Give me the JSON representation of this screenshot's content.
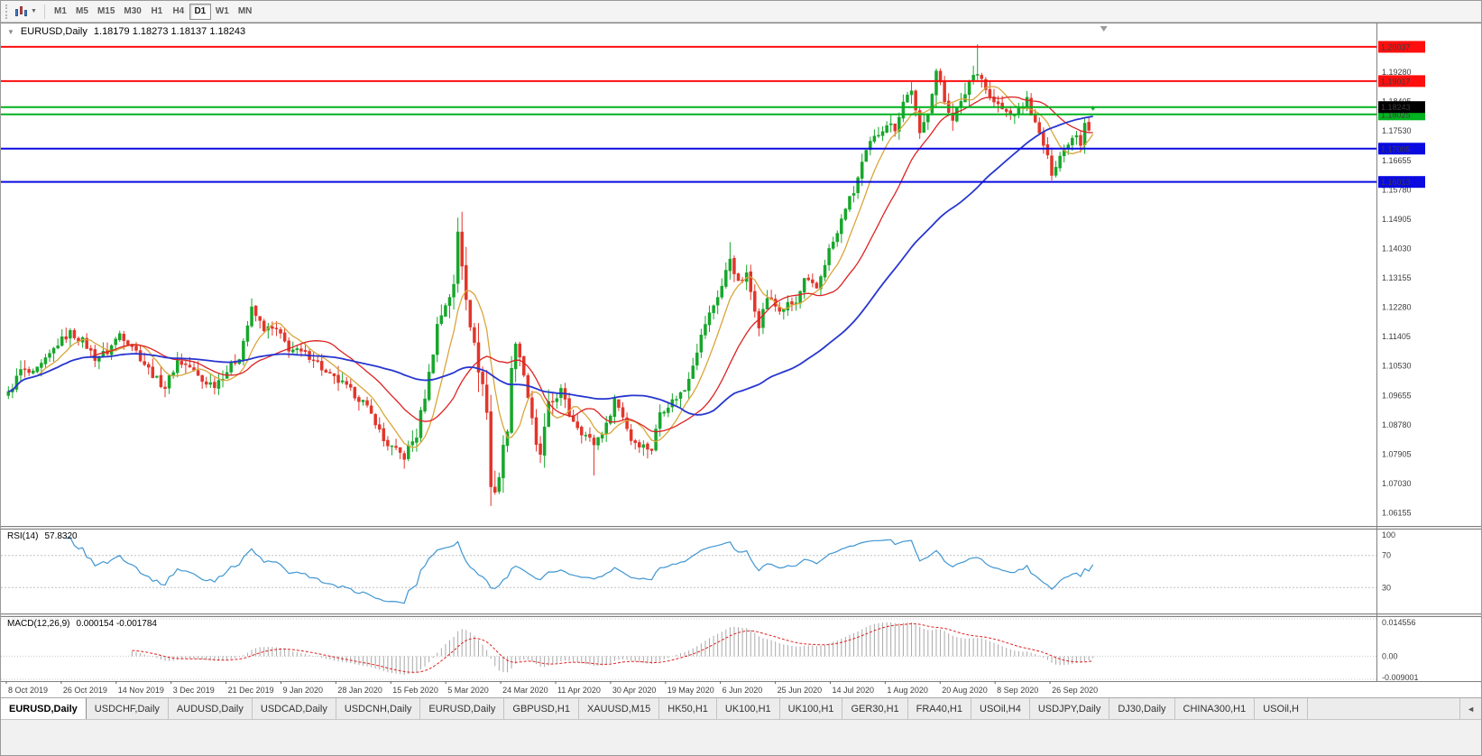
{
  "toolbar": {
    "timeframes": [
      "M1",
      "M5",
      "M15",
      "M30",
      "H1",
      "H4",
      "D1",
      "W1",
      "MN"
    ],
    "active_timeframe": "D1"
  },
  "chart": {
    "title_symbol": "EURUSD,Daily",
    "ohlc": "1.18179 1.18273 1.18137 1.18243",
    "collapse_icon": "▼"
  },
  "rsi_header": {
    "name": "RSI(14)",
    "value": "57.8320"
  },
  "macd_header": {
    "name": "MACD(12,26,9)",
    "values": "0.000154 -0.001784"
  },
  "tabs": {
    "items": [
      {
        "label": "EURUSD,Daily",
        "active": true
      },
      {
        "label": "USDCHF,Daily",
        "active": false
      },
      {
        "label": "AUDUSD,Daily",
        "active": false
      },
      {
        "label": "USDCAD,Daily",
        "active": false
      },
      {
        "label": "USDCNH,Daily",
        "active": false
      },
      {
        "label": "EURUSD,Daily",
        "active": false
      },
      {
        "label": "GBPUSD,H1",
        "active": false
      },
      {
        "label": "XAUUSD,M15",
        "active": false
      },
      {
        "label": "HK50,H1",
        "active": false
      },
      {
        "label": "UK100,H1",
        "active": false
      },
      {
        "label": "UK100,H1",
        "active": false
      },
      {
        "label": "GER30,H1",
        "active": false
      },
      {
        "label": "FRA40,H1",
        "active": false
      },
      {
        "label": "USOil,H4",
        "active": false
      },
      {
        "label": "USDJPY,Daily",
        "active": false
      },
      {
        "label": "DJ30,Daily",
        "active": false
      },
      {
        "label": "CHINA300,H1",
        "active": false
      },
      {
        "label": "USOil,H",
        "active": false
      }
    ],
    "overflow_indicator": "◄"
  },
  "chart_data": {
    "type": "candlestick",
    "symbol": "EURUSD",
    "timeframe": "Daily",
    "ohlc_display": {
      "open": 1.18179,
      "high": 1.18273,
      "low": 1.18137,
      "close": 1.18243
    },
    "total_bars": 264,
    "label_step_bars": 13.32,
    "x_labels": [
      "8 Oct 2019",
      "26 Oct 2019",
      "14 Nov 2019",
      "3 Dec 2019",
      "21 Dec 2019",
      "9 Jan 2020",
      "28 Jan 2020",
      "15 Feb 2020",
      "5 Mar 2020",
      "24 Mar 2020",
      "11 Apr 2020",
      "30 Apr 2020",
      "19 May 2020",
      "6 Jun 2020",
      "25 Jun 2020",
      "14 Jul 2020",
      "1 Aug 2020",
      "20 Aug 2020",
      "8 Sep 2020",
      "26 Sep 2020"
    ],
    "y_range": [
      1.0582,
      1.2068
    ],
    "y_ticks": [
      "1.19280",
      "1.18405",
      "1.17530",
      "1.16655",
      "1.15780",
      "1.14905",
      "1.14030",
      "1.13155",
      "1.12280",
      "1.11405",
      "1.10530",
      "1.09655",
      "1.08780",
      "1.07905",
      "1.07030",
      "1.06155"
    ],
    "h_lines": [
      {
        "price": 1.20037,
        "label": "1.20037",
        "color": "#ff0e0e",
        "show_label": true
      },
      {
        "price": 1.19017,
        "label": "1.19017",
        "color": "#ff0e0e",
        "show_label": true
      },
      {
        "price": 1.18243,
        "label": "1.18243",
        "color": "#00b21e",
        "show_label": false
      },
      {
        "price": 1.18025,
        "label": "1.18025",
        "color": "#00b21e",
        "show_label": true
      },
      {
        "price": 1.17005,
        "label": "1.17005",
        "color": "#0a0ae0",
        "show_label": true
      },
      {
        "price": 1.16013,
        "label": "1.16013",
        "color": "#0a0ae0",
        "show_label": true
      }
    ],
    "current_price": {
      "value": 1.18243,
      "label": "1.18243",
      "box_color": "#000000",
      "text_color": "#ffffff"
    },
    "close_waypoints": [
      [
        0,
        1.097
      ],
      [
        3,
        1.104
      ],
      [
        6,
        1.1028
      ],
      [
        9,
        1.1068
      ],
      [
        12,
        1.112
      ],
      [
        15,
        1.1152
      ],
      [
        18,
        1.1128
      ],
      [
        21,
        1.1078
      ],
      [
        24,
        1.1095
      ],
      [
        27,
        1.115
      ],
      [
        30,
        1.1115
      ],
      [
        33,
        1.106
      ],
      [
        36,
        1.1012
      ],
      [
        38,
        1.099
      ],
      [
        41,
        1.1068
      ],
      [
        44,
        1.105
      ],
      [
        47,
        1.1008
      ],
      [
        50,
        1.0998
      ],
      [
        53,
        1.1038
      ],
      [
        56,
        1.1082
      ],
      [
        59,
        1.1221
      ],
      [
        62,
        1.1165
      ],
      [
        65,
        1.116
      ],
      [
        68,
        1.1105
      ],
      [
        71,
        1.1092
      ],
      [
        74,
        1.1078
      ],
      [
        77,
        1.103
      ],
      [
        81,
        1.1
      ],
      [
        84,
        1.0968
      ],
      [
        86,
        1.0946
      ],
      [
        89,
        1.0888
      ],
      [
        91,
        1.083
      ],
      [
        94,
        1.08
      ],
      [
        96,
        1.0785
      ],
      [
        99,
        1.0848
      ],
      [
        102,
        1.1027
      ],
      [
        104,
        1.1174
      ],
      [
        106,
        1.1239
      ],
      [
        108,
        1.1288
      ],
      [
        109,
        1.145
      ],
      [
        111,
        1.1271
      ],
      [
        113,
        1.1105
      ],
      [
        115,
        1.0998
      ],
      [
        116,
        1.0915
      ],
      [
        117,
        1.0692
      ],
      [
        118,
        1.0688
      ],
      [
        119,
        1.0727
      ],
      [
        121,
        1.088
      ],
      [
        122,
        1.103
      ],
      [
        123,
        1.114
      ],
      [
        125,
        1.1031
      ],
      [
        126,
        1.0963
      ],
      [
        128,
        1.0808
      ],
      [
        129,
        1.0791
      ],
      [
        131,
        1.093
      ],
      [
        134,
        1.098
      ],
      [
        136,
        1.091
      ],
      [
        139,
        1.0858
      ],
      [
        142,
        1.0822
      ],
      [
        145,
        1.0875
      ],
      [
        147,
        1.0955
      ],
      [
        149,
        1.0905
      ],
      [
        151,
        1.0834
      ],
      [
        154,
        1.0815
      ],
      [
        156,
        1.0805
      ],
      [
        158,
        1.0916
      ],
      [
        161,
        1.0948
      ],
      [
        164,
        1.0983
      ],
      [
        167,
        1.1101
      ],
      [
        169,
        1.118
      ],
      [
        171,
        1.1234
      ],
      [
        173,
        1.1291
      ],
      [
        175,
        1.1375
      ],
      [
        177,
        1.1298
      ],
      [
        179,
        1.1323
      ],
      [
        182,
        1.1177
      ],
      [
        184,
        1.1258
      ],
      [
        187,
        1.1218
      ],
      [
        189,
        1.1234
      ],
      [
        191,
        1.1239
      ],
      [
        193,
        1.1308
      ],
      [
        196,
        1.1284
      ],
      [
        199,
        1.1398
      ],
      [
        201,
        1.1446
      ],
      [
        203,
        1.1527
      ],
      [
        205,
        1.1571
      ],
      [
        207,
        1.1656
      ],
      [
        209,
        1.1716
      ],
      [
        211,
        1.1746
      ],
      [
        213,
        1.1776
      ],
      [
        215,
        1.1762
      ],
      [
        217,
        1.184
      ],
      [
        219,
        1.1878
      ],
      [
        221,
        1.1739
      ],
      [
        223,
        1.1813
      ],
      [
        225,
        1.1932
      ],
      [
        227,
        1.1842
      ],
      [
        229,
        1.1796
      ],
      [
        231,
        1.1831
      ],
      [
        233,
        1.1903
      ],
      [
        235,
        1.1936
      ],
      [
        236,
        1.1911
      ],
      [
        238,
        1.1851
      ],
      [
        241,
        1.1817
      ],
      [
        243,
        1.1801
      ],
      [
        245,
        1.1814
      ],
      [
        247,
        1.1847
      ],
      [
        249,
        1.1772
      ],
      [
        251,
        1.1712
      ],
      [
        253,
        1.163
      ],
      [
        255,
        1.168
      ],
      [
        257,
        1.1721
      ],
      [
        259,
        1.1747
      ],
      [
        260,
        1.1716
      ],
      [
        261,
        1.1784
      ],
      [
        262,
        1.176
      ],
      [
        263,
        1.18243
      ]
    ],
    "vol_zones": [
      {
        "from": 96,
        "to": 108,
        "mult": 1.5
      },
      {
        "from": 109,
        "to": 125,
        "mult": 2.2
      },
      {
        "from": 126,
        "to": 132,
        "mult": 1.6
      },
      {
        "from": 225,
        "to": 237,
        "mult": 1.4
      }
    ],
    "spike_highs": [
      {
        "bar": 59,
        "price": 1.1239
      },
      {
        "bar": 109,
        "price": 1.1495
      },
      {
        "bar": 175,
        "price": 1.1422
      },
      {
        "bar": 235,
        "price": 1.2011
      }
    ],
    "spike_lows": [
      {
        "bar": 96,
        "price": 1.0778
      },
      {
        "bar": 117,
        "price": 1.0636
      },
      {
        "bar": 142,
        "price": 1.0727
      },
      {
        "bar": 253,
        "price": 1.1612
      }
    ],
    "moving_averages": [
      {
        "period": 8,
        "color": "#d9a53a",
        "width": 1.3
      },
      {
        "period": 21,
        "color": "#dd2222",
        "width": 1.3
      },
      {
        "period": 55,
        "color": "#2736cf",
        "width": 1.8
      }
    ],
    "rsi": {
      "period": 14,
      "current": 57.832,
      "axis_labels": [
        "100",
        "70",
        "30"
      ],
      "level_lines": [
        70,
        30
      ],
      "color": "#3f96d2"
    },
    "macd": {
      "fast": 12,
      "slow": 26,
      "signal": 9,
      "current_macd": 0.000154,
      "current_signal": -0.001784,
      "y_range": [
        -0.009001,
        0.014556
      ],
      "axis_labels": [
        "0.014556",
        "0.00",
        "-0.009001"
      ],
      "hist_color": "#a8a8a8",
      "signal_color": "#de2020"
    },
    "colors": {
      "up": "#17a62b",
      "down": "#e2352a",
      "background": "#ffffff",
      "border": "#808080"
    }
  }
}
